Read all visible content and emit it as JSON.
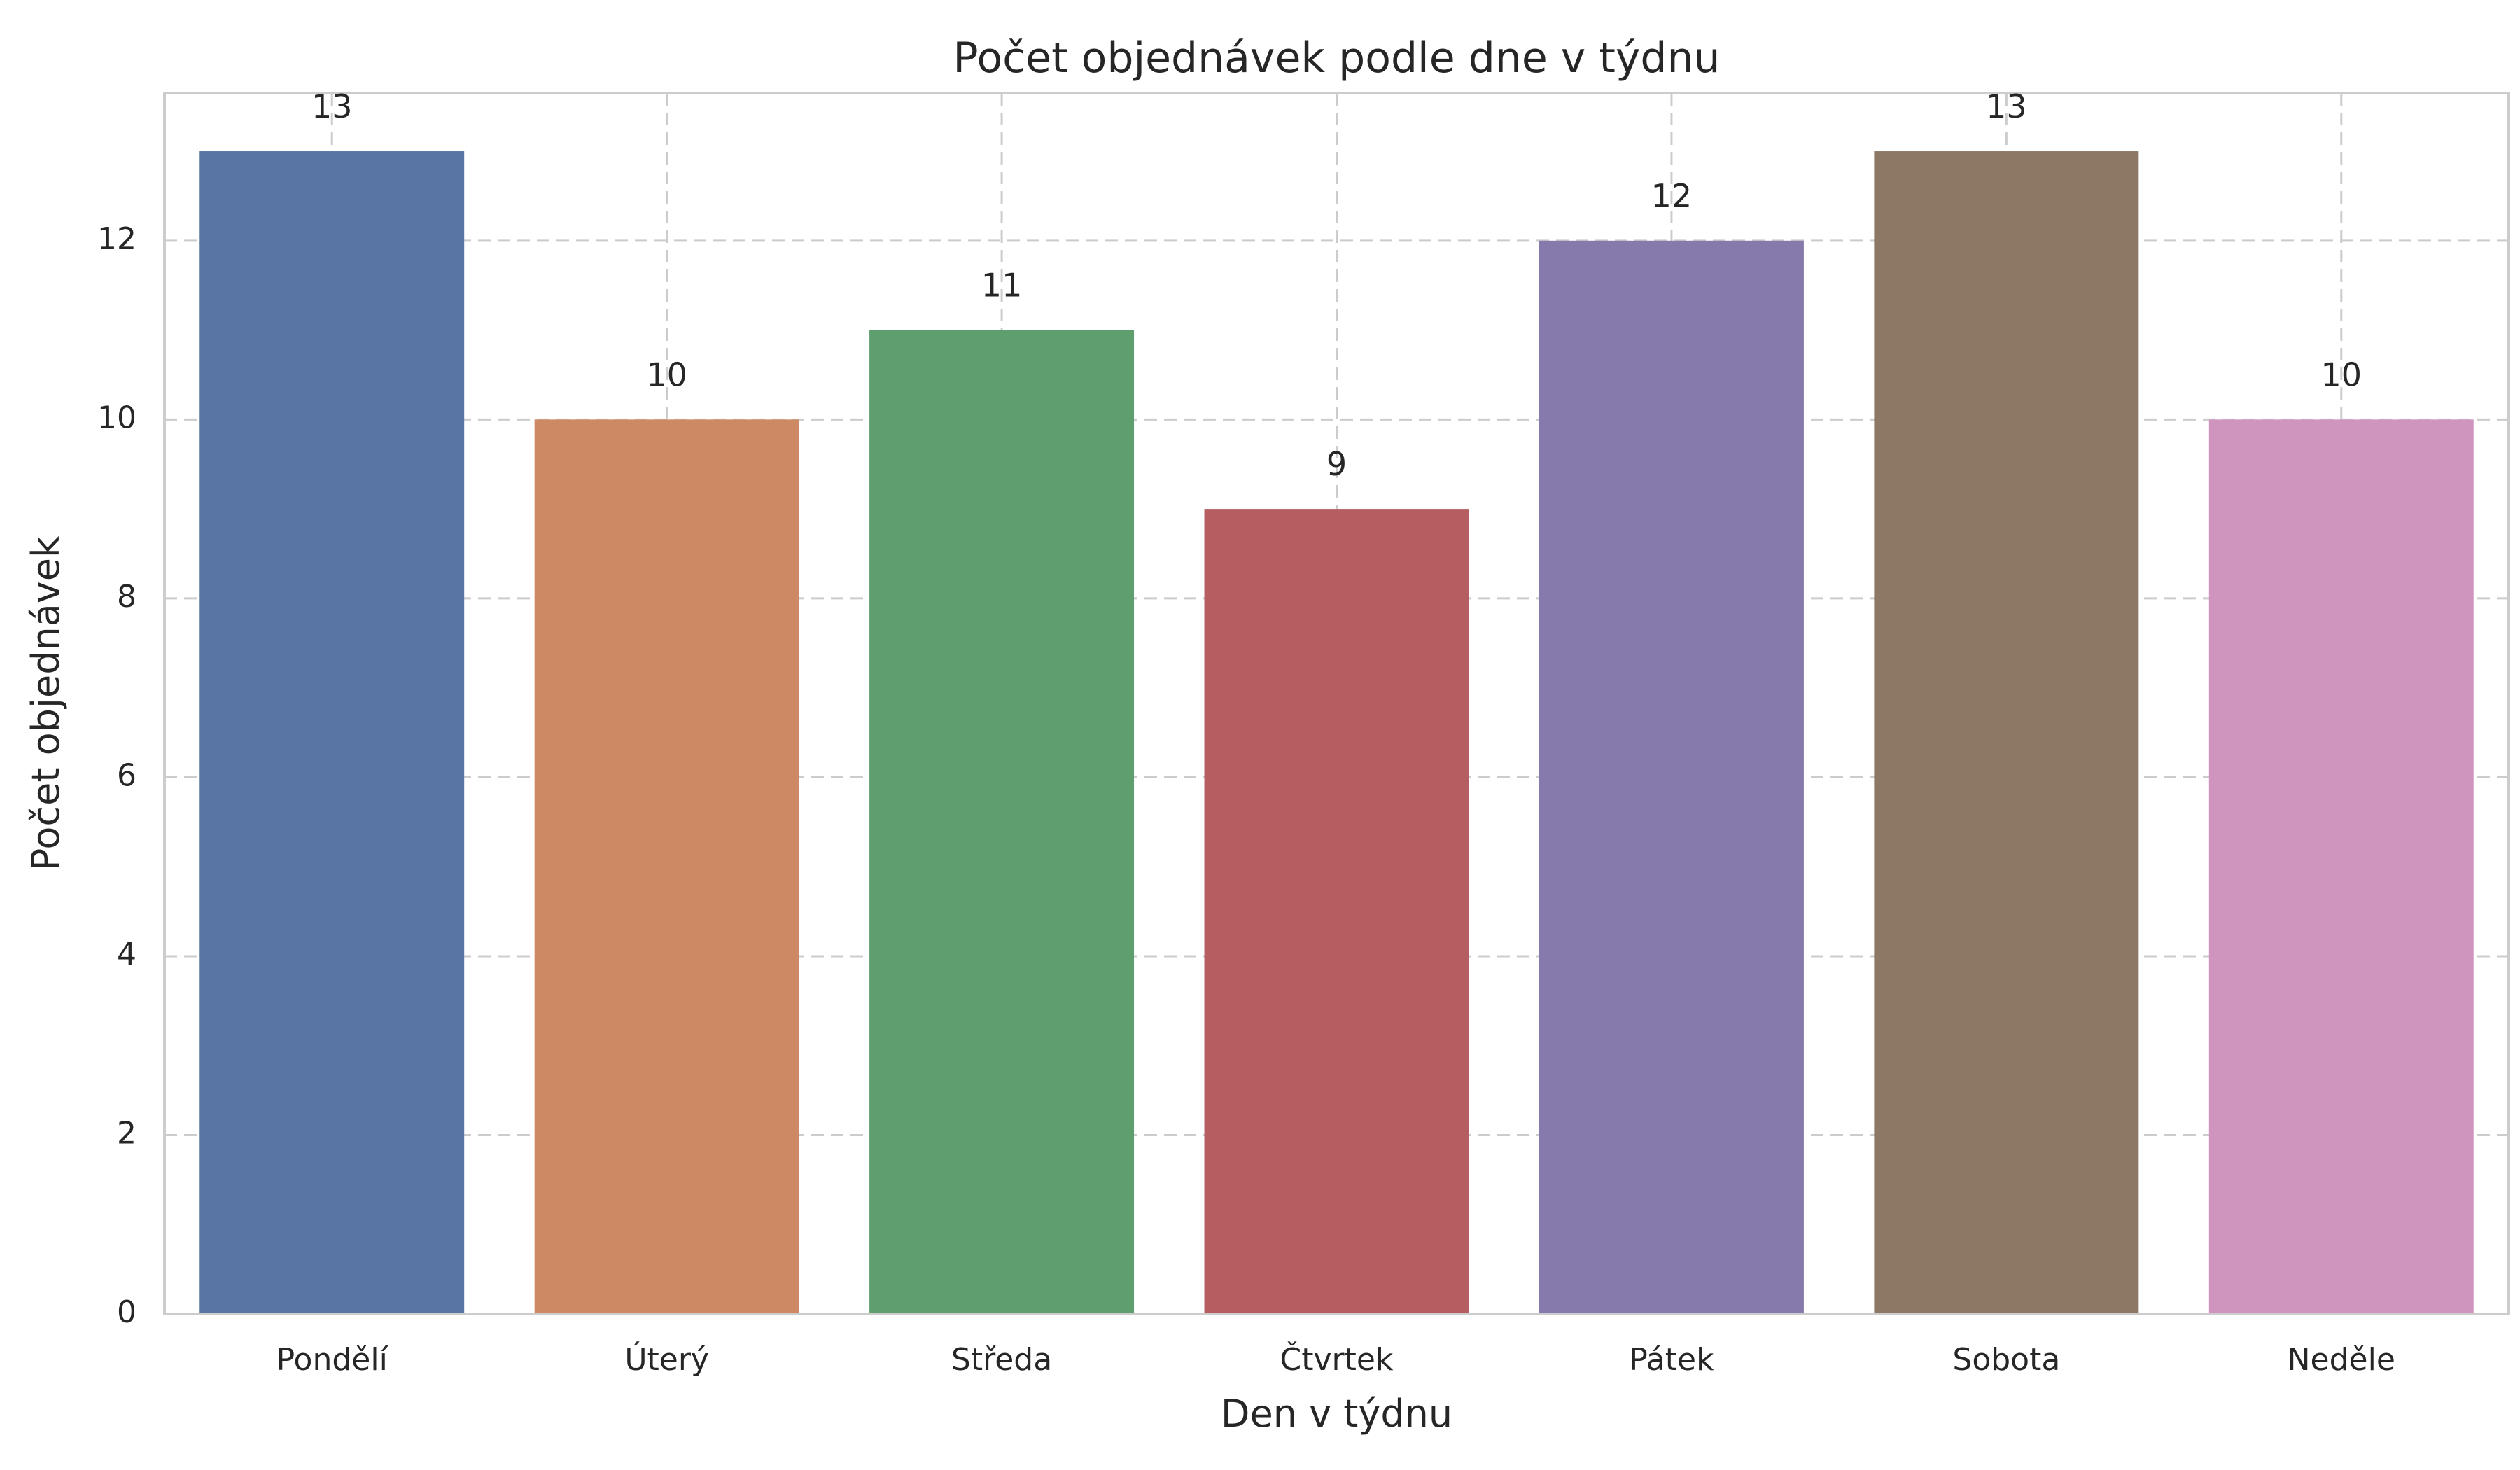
{
  "chart_data": {
    "type": "bar",
    "title": "Počet objednávek podle dne v týdnu",
    "xlabel": "Den v týdnu",
    "ylabel": "Počet objednávek",
    "categories": [
      "Pondělí",
      "Úterý",
      "Středa",
      "Čtvrtek",
      "Pátek",
      "Sobota",
      "Neděle"
    ],
    "values": [
      13,
      10,
      11,
      9,
      12,
      13,
      10
    ],
    "data_labels": [
      "13",
      "10",
      "11",
      "9",
      "12",
      "13",
      "10"
    ],
    "colors": [
      "#5875a4",
      "#cc8963",
      "#5f9e6e",
      "#b55d60",
      "#857aab",
      "#8d7866",
      "#d095bf"
    ],
    "ylim": [
      0,
      13.65
    ],
    "yticks": [
      0,
      2,
      4,
      6,
      8,
      10,
      12
    ],
    "ytick_labels": [
      "0",
      "2",
      "4",
      "6",
      "8",
      "10",
      "12"
    ],
    "grid": true,
    "grid_style": "dashed",
    "legend": false
  }
}
